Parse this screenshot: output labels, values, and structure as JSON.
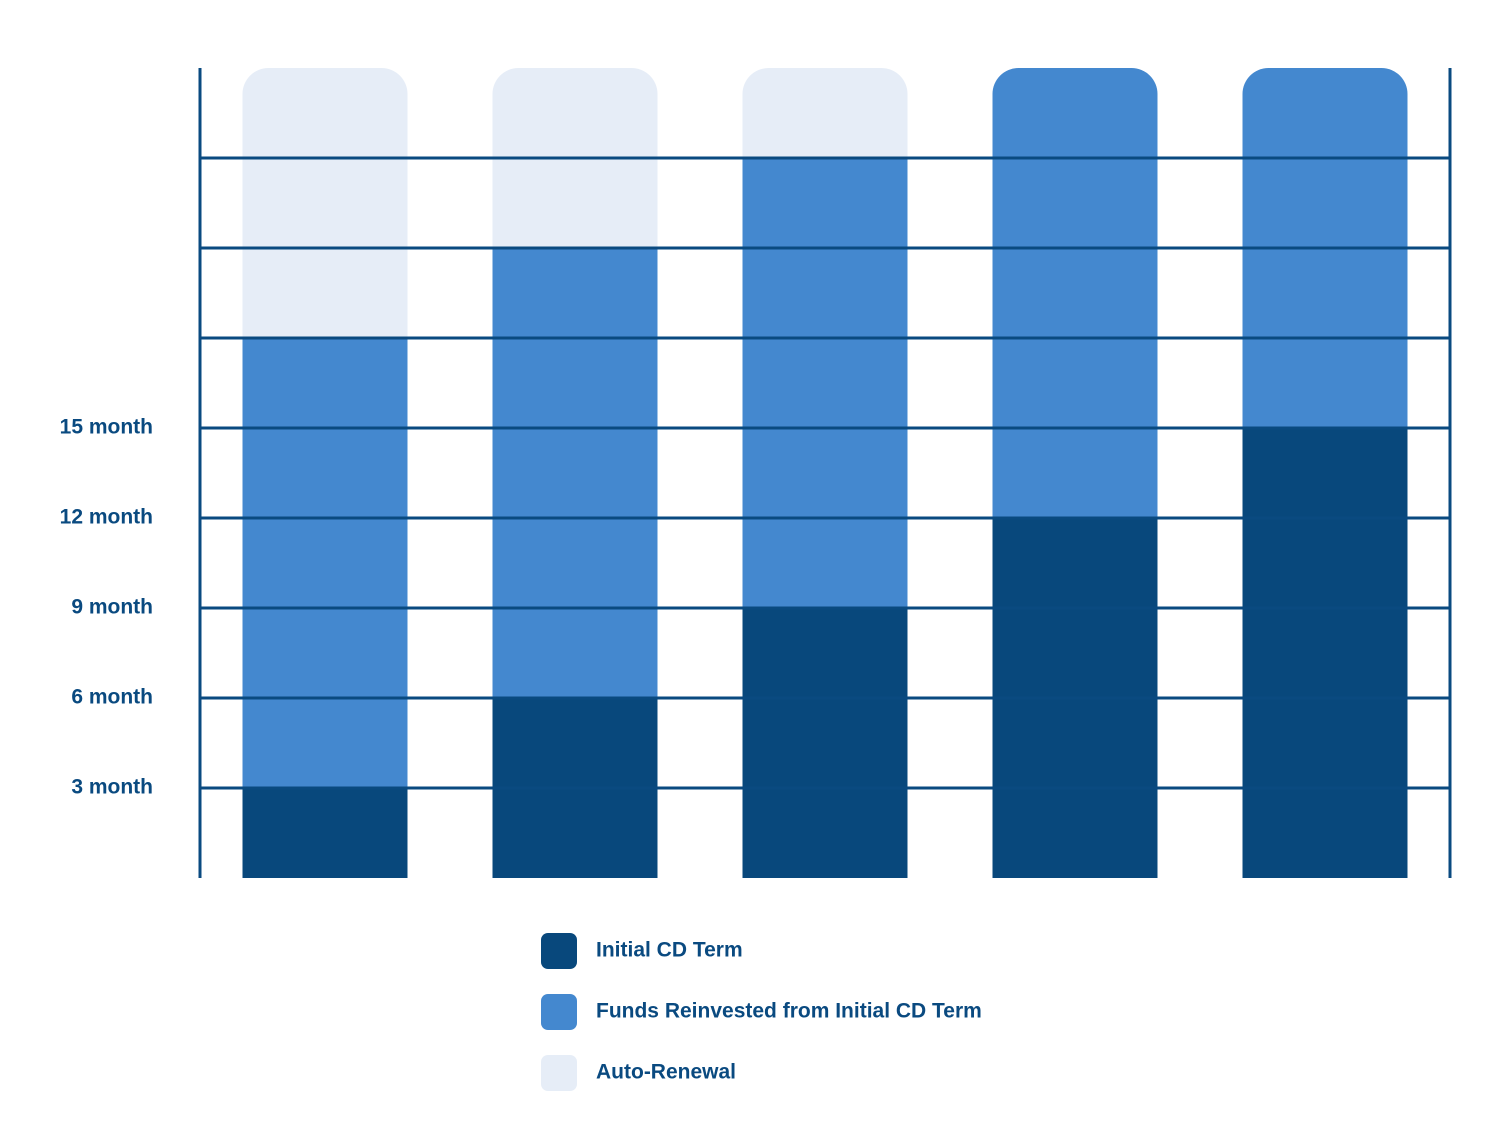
{
  "chart_data": {
    "type": "stacked_bar",
    "categories": [
      null,
      null,
      null,
      null,
      null
    ],
    "series": [
      {
        "name": "Initial CD Term",
        "color": "#08487c",
        "values": [
          3,
          6,
          9,
          12,
          15
        ]
      },
      {
        "name": "Funds Reinvested from Initial CD Term",
        "color": "#4488cf",
        "values": [
          15,
          15,
          15,
          15,
          12
        ]
      },
      {
        "name": "Auto-Renewal",
        "color": "#e6edf7",
        "values": [
          9,
          6,
          3,
          0,
          0
        ]
      }
    ],
    "ylim": [
      0,
      27
    ],
    "yticks": [
      {
        "value": 3,
        "label": "3 month"
      },
      {
        "value": 6,
        "label": "6 month"
      },
      {
        "value": 9,
        "label": "9 month"
      },
      {
        "value": 12,
        "label": "12 month"
      },
      {
        "value": 15,
        "label": "15 month"
      },
      {
        "value": 18,
        "label": null
      },
      {
        "value": 21,
        "label": null
      },
      {
        "value": 24,
        "label": null
      }
    ],
    "grid": true,
    "legend": "bottom"
  }
}
